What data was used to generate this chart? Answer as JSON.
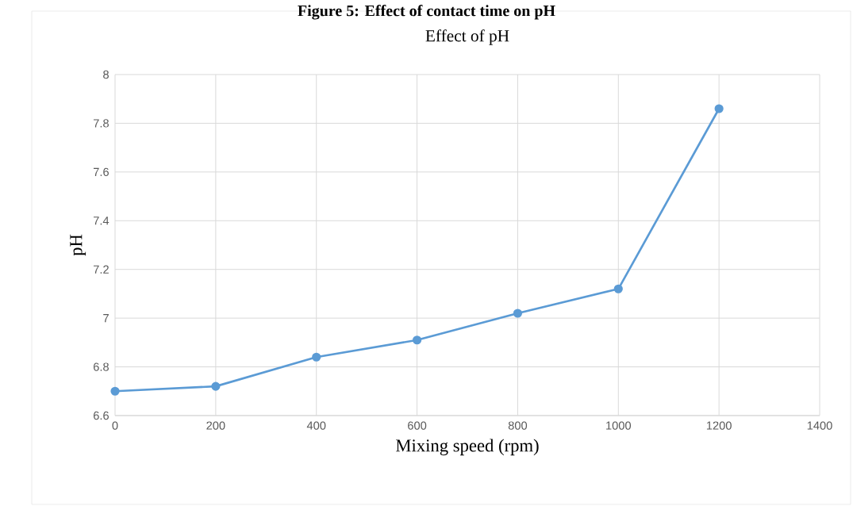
{
  "chart_data": {
    "type": "line",
    "title": "Effect of pH",
    "xlabel": "Mixing speed (rpm)",
    "ylabel": "pH",
    "annotations": [
      "Figure 5: Effect of contact time on pH"
    ],
    "x": [
      0,
      200,
      400,
      600,
      800,
      1000,
      1200
    ],
    "series": [
      {
        "color": "#5b9bd5",
        "values": [
          6.7,
          6.72,
          6.84,
          6.91,
          7.02,
          7.12,
          7.86
        ]
      }
    ],
    "xlim": [
      0,
      1400
    ],
    "ylim": [
      6.6,
      8
    ],
    "xticks": [
      0,
      200,
      400,
      600,
      800,
      1000,
      1200,
      1400
    ],
    "yticks": [
      6.6,
      6.8,
      7,
      7.2,
      7.4,
      7.6,
      7.8,
      8
    ],
    "grid": true,
    "marker": "circle",
    "line_style": "solid"
  }
}
